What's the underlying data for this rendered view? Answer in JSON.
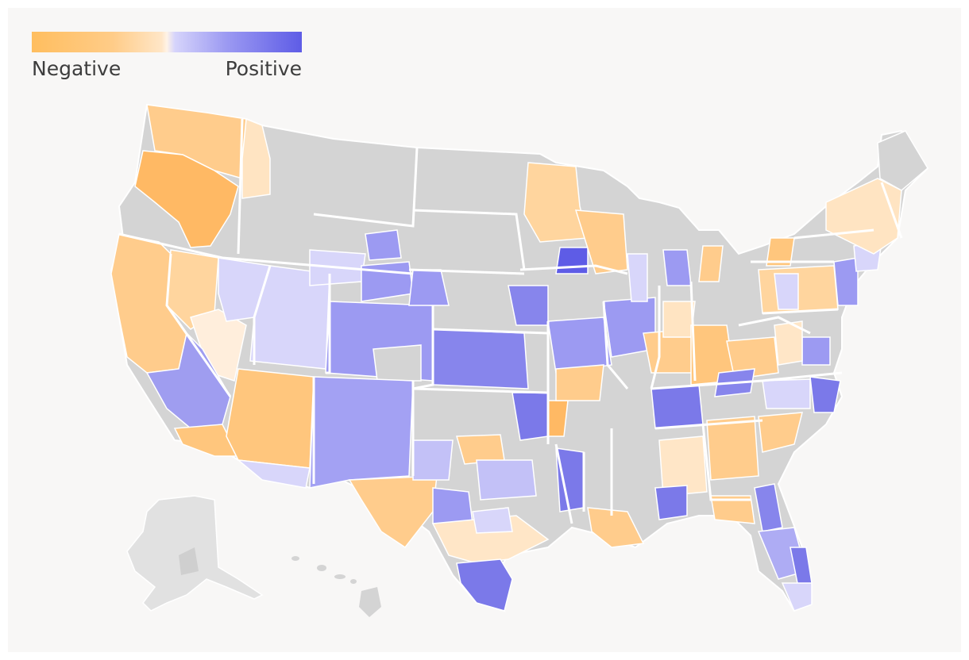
{
  "legend": {
    "negative_label": "Negative",
    "positive_label": "Positive",
    "scale_colors": [
      "#ffbe5f",
      "#ffe6c7",
      "#d6d4fb",
      "#5e5ce6"
    ]
  },
  "map": {
    "no_data_color": "#d4d4d4",
    "inset_color": "#e1e1e1",
    "border_color": "#ffffff"
  }
}
